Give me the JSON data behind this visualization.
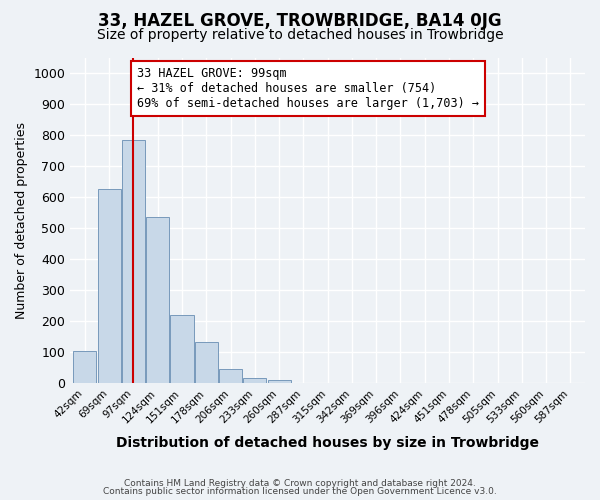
{
  "title": "33, HAZEL GROVE, TROWBRIDGE, BA14 0JG",
  "subtitle": "Size of property relative to detached houses in Trowbridge",
  "xlabel": "Distribution of detached houses by size in Trowbridge",
  "ylabel": "Number of detached properties",
  "bar_values": [
    103,
    625,
    785,
    537,
    220,
    133,
    45,
    18,
    10,
    0,
    0,
    0,
    0,
    0,
    0,
    0,
    0,
    0,
    0,
    0,
    0
  ],
  "bar_labels": [
    "42sqm",
    "69sqm",
    "97sqm",
    "124sqm",
    "151sqm",
    "178sqm",
    "206sqm",
    "233sqm",
    "260sqm",
    "287sqm",
    "315sqm",
    "342sqm",
    "369sqm",
    "396sqm",
    "424sqm",
    "451sqm",
    "478sqm",
    "505sqm",
    "533sqm",
    "560sqm",
    "587sqm"
  ],
  "bar_color": "#c8d8e8",
  "bar_edge_color": "#7799bb",
  "vline_x": 2,
  "vline_color": "#cc0000",
  "ylim": [
    0,
    1050
  ],
  "yticks": [
    0,
    100,
    200,
    300,
    400,
    500,
    600,
    700,
    800,
    900,
    1000
  ],
  "annotation_text": "33 HAZEL GROVE: 99sqm\n← 31% of detached houses are smaller (754)\n69% of semi-detached houses are larger (1,703) →",
  "annotation_box_color": "#ffffff",
  "annotation_box_edge": "#cc0000",
  "footer_line1": "Contains HM Land Registry data © Crown copyright and database right 2024.",
  "footer_line2": "Contains public sector information licensed under the Open Government Licence v3.0.",
  "background_color": "#eef2f6",
  "plot_bg_color": "#eef2f6",
  "title_fontsize": 12,
  "subtitle_fontsize": 10
}
